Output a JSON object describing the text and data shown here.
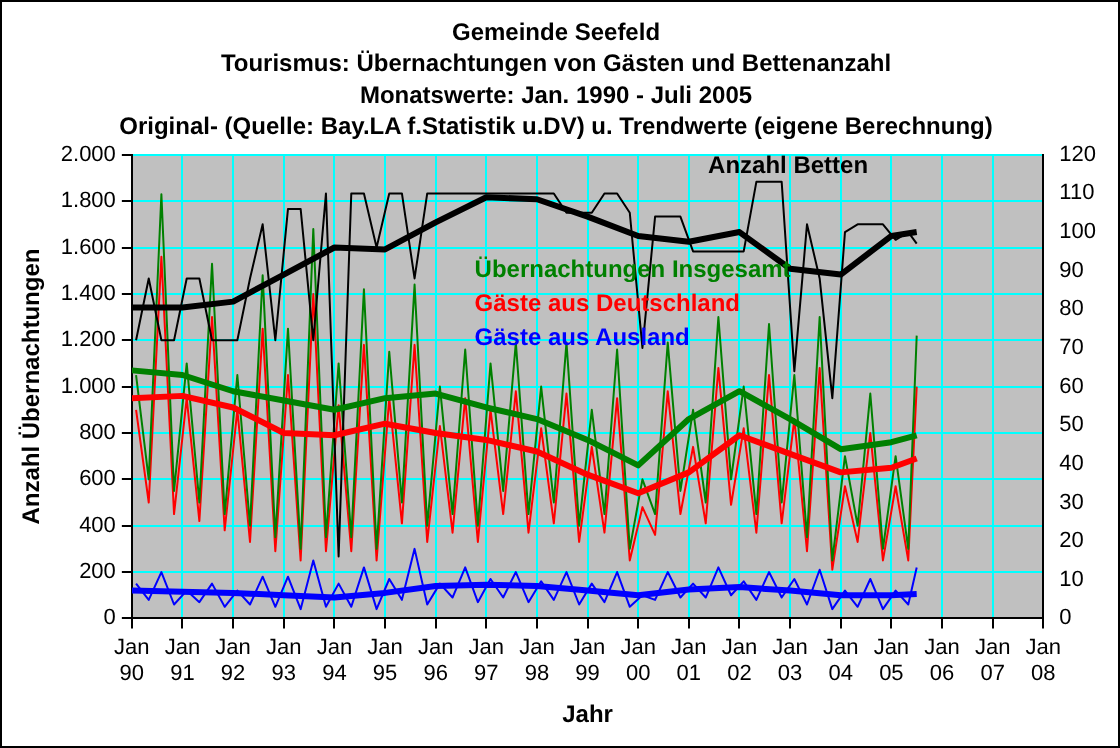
{
  "chart_data": {
    "type": "line",
    "title": "Gemeinde Seefeld",
    "subtitle": "Tourismus: Übernachtungen von Gästen und Bettenanzahl",
    "annotations": [
      "Monatswerte: Jan. 1990 - Juli 2005",
      "Original- (Quelle: Bay.LA f.Statistik u.DV) u. Trendwerte (eigene Berechnung)"
    ],
    "xlabel": "Jahr",
    "ylabel": "Anzahl Übernachtungen",
    "x": [
      "1990-02",
      "1990-05",
      "1990-08",
      "1990-11",
      "1991-02",
      "1991-05",
      "1991-08",
      "1991-11",
      "1992-02",
      "1992-05",
      "1992-08",
      "1992-11",
      "1993-02",
      "1993-05",
      "1993-08",
      "1993-11",
      "1994-02",
      "1994-05",
      "1994-08",
      "1994-11",
      "1995-02",
      "1995-05",
      "1995-08",
      "1995-11",
      "1996-02",
      "1996-05",
      "1996-08",
      "1996-11",
      "1997-02",
      "1997-05",
      "1997-08",
      "1997-11",
      "1998-02",
      "1998-05",
      "1998-08",
      "1998-11",
      "1999-02",
      "1999-05",
      "1999-08",
      "1999-11",
      "2000-02",
      "2000-05",
      "2000-08",
      "2000-11",
      "2001-02",
      "2001-05",
      "2001-08",
      "2001-11",
      "2002-02",
      "2002-05",
      "2002-08",
      "2002-11",
      "2003-02",
      "2003-05",
      "2003-08",
      "2003-11",
      "2004-02",
      "2004-05",
      "2004-08",
      "2004-11",
      "2005-02",
      "2005-05",
      "2005-07"
    ],
    "series": [
      {
        "name": "Anzahl Betten",
        "color": "#000000",
        "axis": "y2",
        "values": [
          72,
          88,
          72,
          72,
          88,
          88,
          72,
          72,
          72,
          88,
          102,
          72,
          106,
          106,
          72,
          110,
          16,
          110,
          110,
          96,
          110,
          110,
          88,
          110,
          110,
          110,
          110,
          110,
          110,
          110,
          110,
          110,
          110,
          110,
          105,
          105,
          105,
          110,
          110,
          105,
          70,
          104,
          104,
          104,
          95,
          95,
          95,
          95,
          95,
          113,
          113,
          113,
          64,
          102,
          88,
          57,
          100,
          102,
          102,
          102,
          98,
          100,
          97
        ]
      },
      {
        "name": "Übernachtungen Insgesamt",
        "color": "#008000",
        "values": [
          1050,
          600,
          1830,
          550,
          1100,
          500,
          1530,
          450,
          1050,
          400,
          1480,
          350,
          1250,
          300,
          1680,
          350,
          1100,
          350,
          1420,
          300,
          1150,
          500,
          1440,
          400,
          1000,
          450,
          1160,
          400,
          1100,
          550,
          1190,
          450,
          1000,
          500,
          1190,
          400,
          900,
          450,
          1160,
          300,
          600,
          450,
          1190,
          550,
          900,
          500,
          1300,
          600,
          1000,
          450,
          1270,
          500,
          1050,
          350,
          1300,
          250,
          700,
          400,
          970,
          300,
          700,
          300,
          1220
        ]
      },
      {
        "name": "Gäste aus Deutschland",
        "color": "#ff0000",
        "values": [
          900,
          500,
          1560,
          450,
          950,
          420,
          1300,
          380,
          900,
          330,
          1250,
          290,
          1050,
          250,
          1400,
          290,
          920,
          290,
          1180,
          250,
          950,
          410,
          1180,
          330,
          830,
          370,
          950,
          330,
          900,
          450,
          980,
          370,
          820,
          410,
          970,
          330,
          740,
          370,
          950,
          250,
          480,
          360,
          980,
          450,
          740,
          410,
          1080,
          490,
          820,
          370,
          1050,
          410,
          860,
          290,
          1080,
          210,
          570,
          330,
          800,
          250,
          570,
          250,
          1000
        ]
      },
      {
        "name": "Gäste aus Ausland",
        "color": "#0000ff",
        "values": [
          150,
          80,
          200,
          60,
          120,
          70,
          150,
          50,
          120,
          60,
          180,
          50,
          180,
          40,
          250,
          50,
          150,
          50,
          220,
          40,
          170,
          80,
          300,
          60,
          150,
          90,
          220,
          70,
          170,
          90,
          200,
          70,
          160,
          80,
          200,
          60,
          150,
          70,
          200,
          50,
          100,
          80,
          200,
          90,
          150,
          90,
          220,
          100,
          160,
          80,
          200,
          90,
          170,
          60,
          210,
          40,
          120,
          50,
          170,
          40,
          120,
          60,
          220
        ]
      },
      {
        "color": "#000000",
        "axis": "y2",
        "x": [
          "1990-01",
          "1991-01",
          "1992-01",
          "1993-01",
          "1994-01",
          "1995-01",
          "1996-01",
          "1997-01",
          "1998-01",
          "1999-01",
          "2000-01",
          "2001-01",
          "2002-01",
          "2003-01",
          "2004-01",
          "2005-01",
          "2005-07"
        ],
        "values": [
          80.5,
          80.5,
          82,
          89,
          96,
          95.5,
          102.5,
          109,
          108.5,
          104,
          99,
          97.5,
          100,
          90.5,
          89,
          99,
          100
        ]
      },
      {
        "color": "#008000",
        "x": [
          "1990-01",
          "1991-01",
          "1992-01",
          "1993-01",
          "1994-01",
          "1995-01",
          "1996-01",
          "1997-01",
          "1998-01",
          "1999-01",
          "2000-01",
          "2001-01",
          "2002-01",
          "2003-01",
          "2004-01",
          "2005-01",
          "2005-07"
        ],
        "values": [
          1070,
          1050,
          980,
          940,
          900,
          950,
          970,
          910,
          860,
          770,
          660,
          860,
          980,
          860,
          730,
          760,
          790
        ]
      },
      {
        "color": "#ff0000",
        "x": [
          "1990-01",
          "1991-01",
          "1992-01",
          "1993-01",
          "1994-01",
          "1995-01",
          "1996-01",
          "1997-01",
          "1998-01",
          "1999-01",
          "2000-01",
          "2001-01",
          "2002-01",
          "2003-01",
          "2004-01",
          "2005-01",
          "2005-07"
        ],
        "values": [
          950,
          960,
          910,
          800,
          790,
          840,
          800,
          770,
          720,
          620,
          540,
          630,
          790,
          710,
          630,
          650,
          690
        ]
      },
      {
        "color": "#0000ff",
        "x": [
          "1990-01",
          "1991-01",
          "1992-01",
          "1993-01",
          "1994-01",
          "1995-01",
          "1996-01",
          "1997-01",
          "1998-01",
          "1999-01",
          "2000-01",
          "2001-01",
          "2002-01",
          "2003-01",
          "2004-01",
          "2005-01",
          "2005-07"
        ],
        "values": [
          120,
          115,
          110,
          100,
          90,
          110,
          140,
          145,
          140,
          120,
          100,
          125,
          135,
          120,
          100,
          100,
          105
        ]
      }
    ],
    "xlim": [
      "1990-01",
      "2008-01"
    ],
    "xticks": [
      {
        "value": "1990-01",
        "label": "Jan 90"
      },
      {
        "value": "1991-01",
        "label": "Jan 91"
      },
      {
        "value": "1992-01",
        "label": "Jan 92"
      },
      {
        "value": "1993-01",
        "label": "Jan 93"
      },
      {
        "value": "1994-01",
        "label": "Jan 94"
      },
      {
        "value": "1995-01",
        "label": "Jan 95"
      },
      {
        "value": "1996-01",
        "label": "Jan 96"
      },
      {
        "value": "1997-01",
        "label": "Jan 97"
      },
      {
        "value": "1998-01",
        "label": "Jan 98"
      },
      {
        "value": "1999-01",
        "label": "Jan 99"
      },
      {
        "value": "2000-01",
        "label": "Jan 00"
      },
      {
        "value": "2001-01",
        "label": "Jan 01"
      },
      {
        "value": "2002-01",
        "label": "Jan 02"
      },
      {
        "value": "2003-01",
        "label": "Jan 03"
      },
      {
        "value": "2004-01",
        "label": "Jan 04"
      },
      {
        "value": "2005-01",
        "label": "Jan 05"
      },
      {
        "value": "2006-01",
        "label": "Jan 06"
      },
      {
        "value": "2007-01",
        "label": "Jan 07"
      },
      {
        "value": "2008-01",
        "label": "Jan 08"
      }
    ],
    "ylim": [
      0,
      2000
    ],
    "yticks": [
      0,
      200,
      400,
      600,
      800,
      {
        "value": 1000,
        "label": "1.000"
      },
      {
        "value": 1200,
        "label": "1.200"
      },
      {
        "value": 1400,
        "label": "1.400"
      },
      {
        "value": 1600,
        "label": "1.600"
      },
      {
        "value": 1800,
        "label": "1.800"
      },
      {
        "value": 2000,
        "label": "2.000"
      }
    ],
    "y2lim": [
      0,
      120
    ],
    "y2ticks": [
      0,
      10,
      20,
      30,
      40,
      50,
      60,
      70,
      80,
      90,
      100,
      110,
      120
    ],
    "grid": true,
    "legend": false,
    "marker": "none",
    "line_style": "solid"
  }
}
